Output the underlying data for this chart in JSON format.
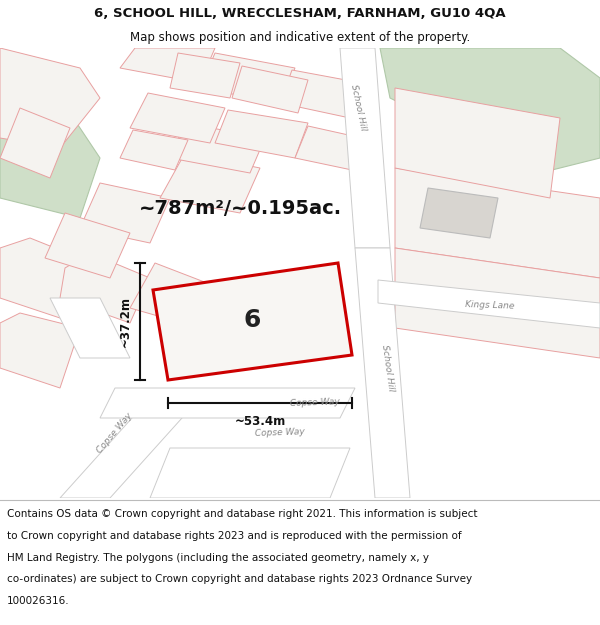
{
  "title_line1": "6, SCHOOL HILL, WRECCLESHAM, FARNHAM, GU10 4QA",
  "title_line2": "Map shows position and indicative extent of the property.",
  "area_text": "~787m²/~0.195ac.",
  "number_label": "6",
  "dim_width": "~53.4m",
  "dim_height": "~37.2m",
  "footer_lines": [
    "Contains OS data © Crown copyright and database right 2021. This information is subject",
    "to Crown copyright and database rights 2023 and is reproduced with the permission of",
    "HM Land Registry. The polygons (including the associated geometry, namely x, y",
    "co-ordinates) are subject to Crown copyright and database rights 2023 Ordnance Survey",
    "100026316."
  ],
  "bg_color": "#f2f0ee",
  "road_fill": "#ffffff",
  "road_edge": "#cccccc",
  "parcel_edge": "#e8a0a0",
  "parcel_fill": "#f5f3f0",
  "highlight_edge": "#cc0000",
  "highlight_fill": "#f8f6f3",
  "green_fill": "#cfdfc8",
  "green_edge": "#b0c8a8",
  "gray_block_fill": "#d8d5d0",
  "gray_block_edge": "#bbbbbb",
  "road_label_color": "#888888",
  "dim_color": "#111111",
  "title_fontsize": 9.5,
  "subtitle_fontsize": 8.5,
  "area_fontsize": 14,
  "label_fontsize": 18,
  "dim_fontsize": 8.5,
  "footer_fontsize": 7.5
}
